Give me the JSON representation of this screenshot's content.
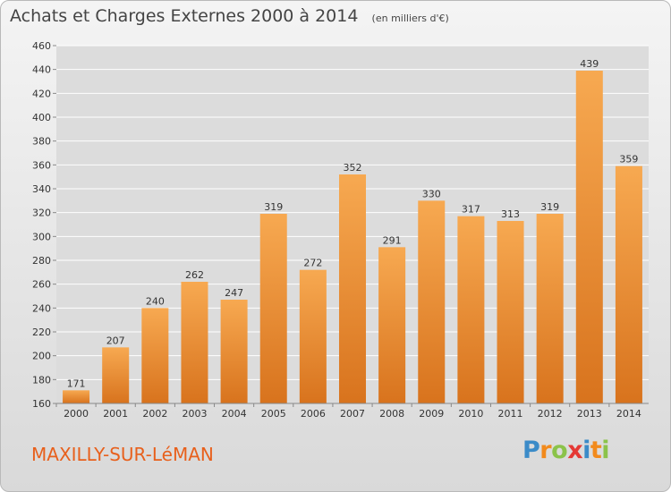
{
  "title": "Achats et Charges Externes 2000 à 2014",
  "subtitle": "(en milliers d'€)",
  "commune": "MAXILLY-SUR-LéMAN",
  "logo": {
    "p": "P",
    "r": "r",
    "o": "o",
    "x": "x",
    "i": "i",
    "t": "t",
    "i2": "i"
  },
  "colors": {
    "bar_light": "#f7a951",
    "bar_dark": "#d8731d",
    "grid": "#ffffff",
    "title": "#444444",
    "commune": "#e8601c"
  },
  "chart_data": {
    "type": "bar",
    "title": "Achats et Charges Externes 2000 à 2014",
    "categories": [
      "2000",
      "2001",
      "2002",
      "2003",
      "2004",
      "2005",
      "2006",
      "2007",
      "2008",
      "2009",
      "2010",
      "2011",
      "2012",
      "2013",
      "2014"
    ],
    "values": [
      171,
      207,
      240,
      262,
      247,
      319,
      272,
      352,
      291,
      330,
      317,
      313,
      319,
      439,
      359
    ],
    "yticks": [
      160,
      180,
      200,
      220,
      240,
      260,
      280,
      300,
      320,
      340,
      360,
      380,
      400,
      420,
      440,
      460
    ],
    "ylim": [
      160,
      460
    ],
    "grid": true,
    "xlabel": "",
    "ylabel": ""
  }
}
